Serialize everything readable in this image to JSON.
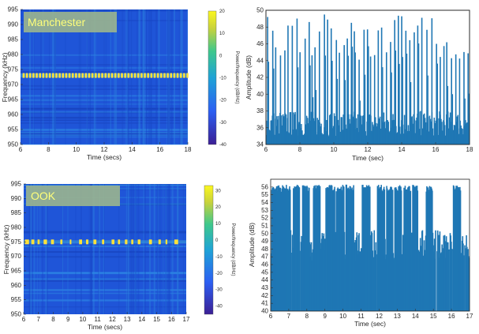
{
  "colors": {
    "spectrogram_bg": "#1f55d8",
    "carrier": "#ffe23a",
    "bars": "#1f77b4",
    "badge_bg": "#9bb58e",
    "badge_text": "#ffff7a"
  },
  "chart_data": [
    {
      "type": "heatmap",
      "badge": "Manchester",
      "xlabel": "Time (secs)",
      "ylabel": "Frequency (kHz)",
      "colorbar_label": "Power/frequency (dB/Hz)",
      "xlim": [
        6,
        18
      ],
      "ylim": [
        950,
        995
      ],
      "xticks": [
        "6",
        "8",
        "10",
        "12",
        "14",
        "16",
        "18"
      ],
      "xtick_values": [
        6,
        8,
        10,
        12,
        14,
        16,
        18
      ],
      "yticks": [
        "995",
        "990",
        "985",
        "980",
        "975",
        "970",
        "965",
        "960",
        "955",
        "950"
      ],
      "ytick_values": [
        995,
        990,
        985,
        980,
        975,
        970,
        965,
        960,
        955,
        950
      ],
      "colorbar_ticks": [
        "20",
        "10",
        "0",
        "-10",
        "-20",
        "-30",
        "-40"
      ],
      "colorbar_values": [
        20,
        10,
        0,
        -10,
        -20,
        -30,
        -40
      ],
      "colorbar_range": [
        -40,
        20
      ],
      "carrier_khz": 973,
      "pulse_period_s": 0.235,
      "pulse_start_s": 6.15,
      "pulse_end_s": 17.9
    },
    {
      "type": "area",
      "xlabel": "Time (sec)",
      "ylabel": "Amplitude (dB)",
      "xlim": [
        6,
        18
      ],
      "ylim": [
        34,
        50
      ],
      "xticks": [
        "6",
        "8",
        "10",
        "12",
        "14",
        "16",
        "18"
      ],
      "xtick_values": [
        6,
        8,
        10,
        12,
        14,
        16,
        18
      ],
      "yticks": [
        "50",
        "48",
        "46",
        "44",
        "42",
        "40",
        "38",
        "36",
        "34"
      ],
      "ytick_values": [
        50,
        48,
        46,
        44,
        42,
        40,
        38,
        36,
        34
      ],
      "noise_floor_db": 36,
      "peak_db": 49.5,
      "burst_period_s": 0.235
    },
    {
      "type": "heatmap",
      "badge": "OOK",
      "xlabel": "Time (secs)",
      "ylabel": "Frequency (kHz)",
      "colorbar_label": "Power/frequency (dB/Hz)",
      "xlim": [
        6,
        17
      ],
      "ylim": [
        950,
        995
      ],
      "xticks": [
        "6",
        "7",
        "8",
        "9",
        "10",
        "11",
        "12",
        "13",
        "14",
        "15",
        "16",
        "17"
      ],
      "xtick_values": [
        6,
        7,
        8,
        9,
        10,
        11,
        12,
        13,
        14,
        15,
        16,
        17
      ],
      "yticks": [
        "995",
        "990",
        "985",
        "980",
        "975",
        "970",
        "965",
        "960",
        "955",
        "950"
      ],
      "ytick_values": [
        995,
        990,
        985,
        980,
        975,
        970,
        965,
        960,
        955,
        950
      ],
      "colorbar_ticks": [
        "30",
        "20",
        "10",
        "0",
        "-10",
        "-20",
        "-30",
        "-40"
      ],
      "colorbar_values": [
        30,
        20,
        10,
        0,
        -10,
        -20,
        -30,
        -40
      ],
      "colorbar_range": [
        -45,
        33
      ],
      "carrier_khz": 975,
      "on_segments_s": [
        [
          6.08,
          6.36
        ],
        [
          6.52,
          6.72
        ],
        [
          6.94,
          7.08
        ],
        [
          7.35,
          7.58
        ],
        [
          7.85,
          8.05
        ],
        [
          8.48,
          8.62
        ],
        [
          9.12,
          9.22
        ],
        [
          9.75,
          9.95
        ],
        [
          10.22,
          10.38
        ],
        [
          10.72,
          10.92
        ],
        [
          11.3,
          11.45
        ],
        [
          11.95,
          12.14
        ],
        [
          12.38,
          12.52
        ],
        [
          12.85,
          13.02
        ],
        [
          13.28,
          13.42
        ],
        [
          13.72,
          13.9
        ],
        [
          14.48,
          14.68
        ],
        [
          15.12,
          15.28
        ],
        [
          15.6,
          15.72
        ],
        [
          16.2,
          16.45
        ]
      ]
    },
    {
      "type": "area",
      "xlabel": "Time (sec)",
      "ylabel": "Amplitude (dB)",
      "xlim": [
        6,
        17
      ],
      "ylim": [
        40,
        57
      ],
      "xticks": [
        "6",
        "7",
        "8",
        "9",
        "10",
        "11",
        "12",
        "13",
        "14",
        "15",
        "16",
        "17"
      ],
      "xtick_values": [
        6,
        7,
        8,
        9,
        10,
        11,
        12,
        13,
        14,
        15,
        16,
        17
      ],
      "yticks": [
        "56",
        "55",
        "54",
        "53",
        "52",
        "51",
        "50",
        "49",
        "48",
        "47",
        "46",
        "45",
        "44",
        "43",
        "42",
        "41",
        "40"
      ],
      "ytick_values": [
        56,
        55,
        54,
        53,
        52,
        51,
        50,
        49,
        48,
        47,
        46,
        45,
        44,
        43,
        42,
        41,
        40
      ],
      "on_level_db": 56,
      "off_level_db": 49.5,
      "bursts_s": [
        [
          6.05,
          6.55
        ],
        [
          6.6,
          7.1
        ],
        [
          7.25,
          7.6
        ],
        [
          7.75,
          8.15
        ],
        [
          8.35,
          8.75
        ],
        [
          9.05,
          9.55
        ],
        [
          9.6,
          10.05
        ],
        [
          10.15,
          10.6
        ],
        [
          11.05,
          11.5
        ],
        [
          11.9,
          12.3
        ],
        [
          12.4,
          12.75
        ],
        [
          12.85,
          13.25
        ],
        [
          13.35,
          13.75
        ],
        [
          13.85,
          14.15
        ],
        [
          14.6,
          14.95
        ],
        [
          16.1,
          16.5
        ]
      ]
    }
  ]
}
